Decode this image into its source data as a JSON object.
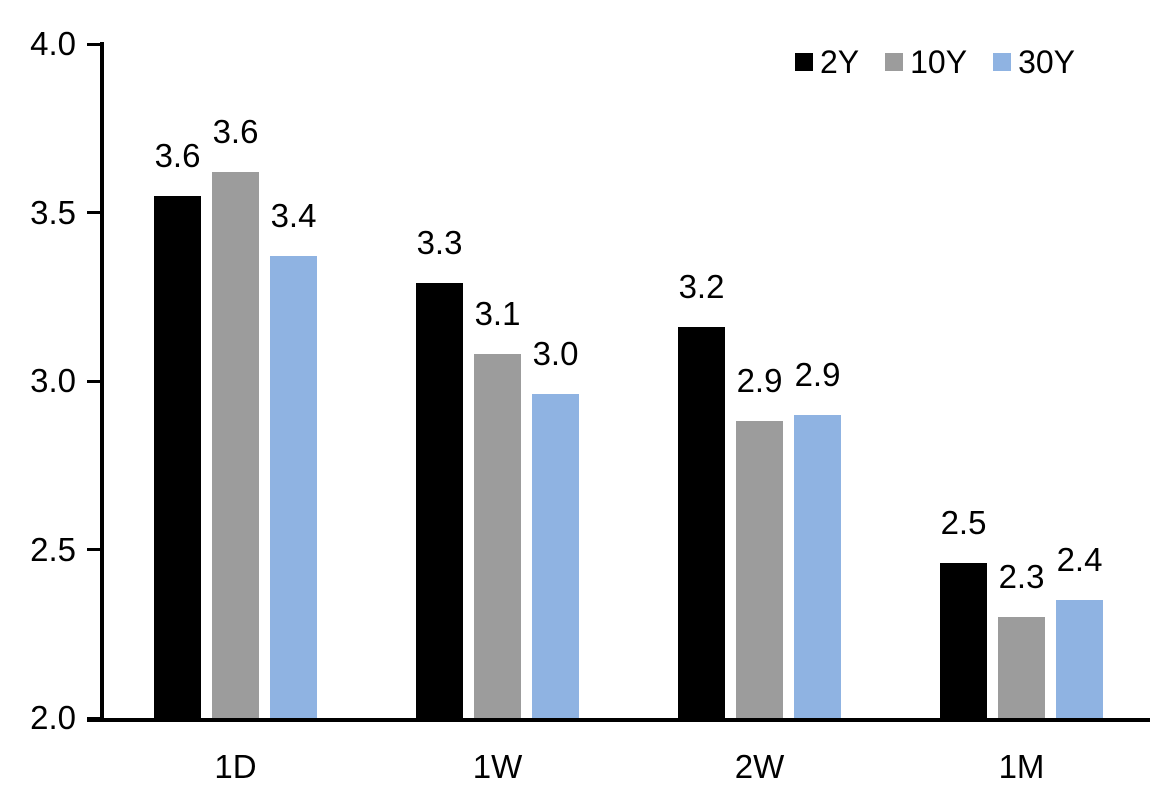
{
  "chart_data": {
    "type": "bar",
    "title": "",
    "xlabel": "",
    "ylabel": "",
    "categories": [
      "1D",
      "1W",
      "2W",
      "1M"
    ],
    "series": [
      {
        "name": "2Y",
        "color": "#000000",
        "values": [
          3.55,
          3.29,
          3.16,
          2.46
        ],
        "data_labels": [
          "3.6",
          "3.3",
          "3.2",
          "2.5"
        ]
      },
      {
        "name": "10Y",
        "color": "#9C9C9C",
        "values": [
          3.62,
          3.08,
          2.88,
          2.3
        ],
        "data_labels": [
          "3.6",
          "3.1",
          "2.9",
          "2.3"
        ]
      },
      {
        "name": "30Y",
        "color": "#8FB3E2",
        "values": [
          3.37,
          2.96,
          2.9,
          2.35
        ],
        "data_labels": [
          "3.4",
          "3.0",
          "2.9",
          "2.4"
        ]
      }
    ],
    "ylim": [
      2.0,
      4.0
    ],
    "ytick_values": [
      4.0,
      3.5,
      3.0,
      2.5,
      2.0
    ],
    "ytick_labels": [
      "4.0",
      "3.5",
      "3.0",
      "2.5",
      "2.0"
    ],
    "grid": false,
    "legend_position": "top-right",
    "axis_color": "#000000",
    "text_color": "#000000",
    "background": "#FFFFFF"
  }
}
